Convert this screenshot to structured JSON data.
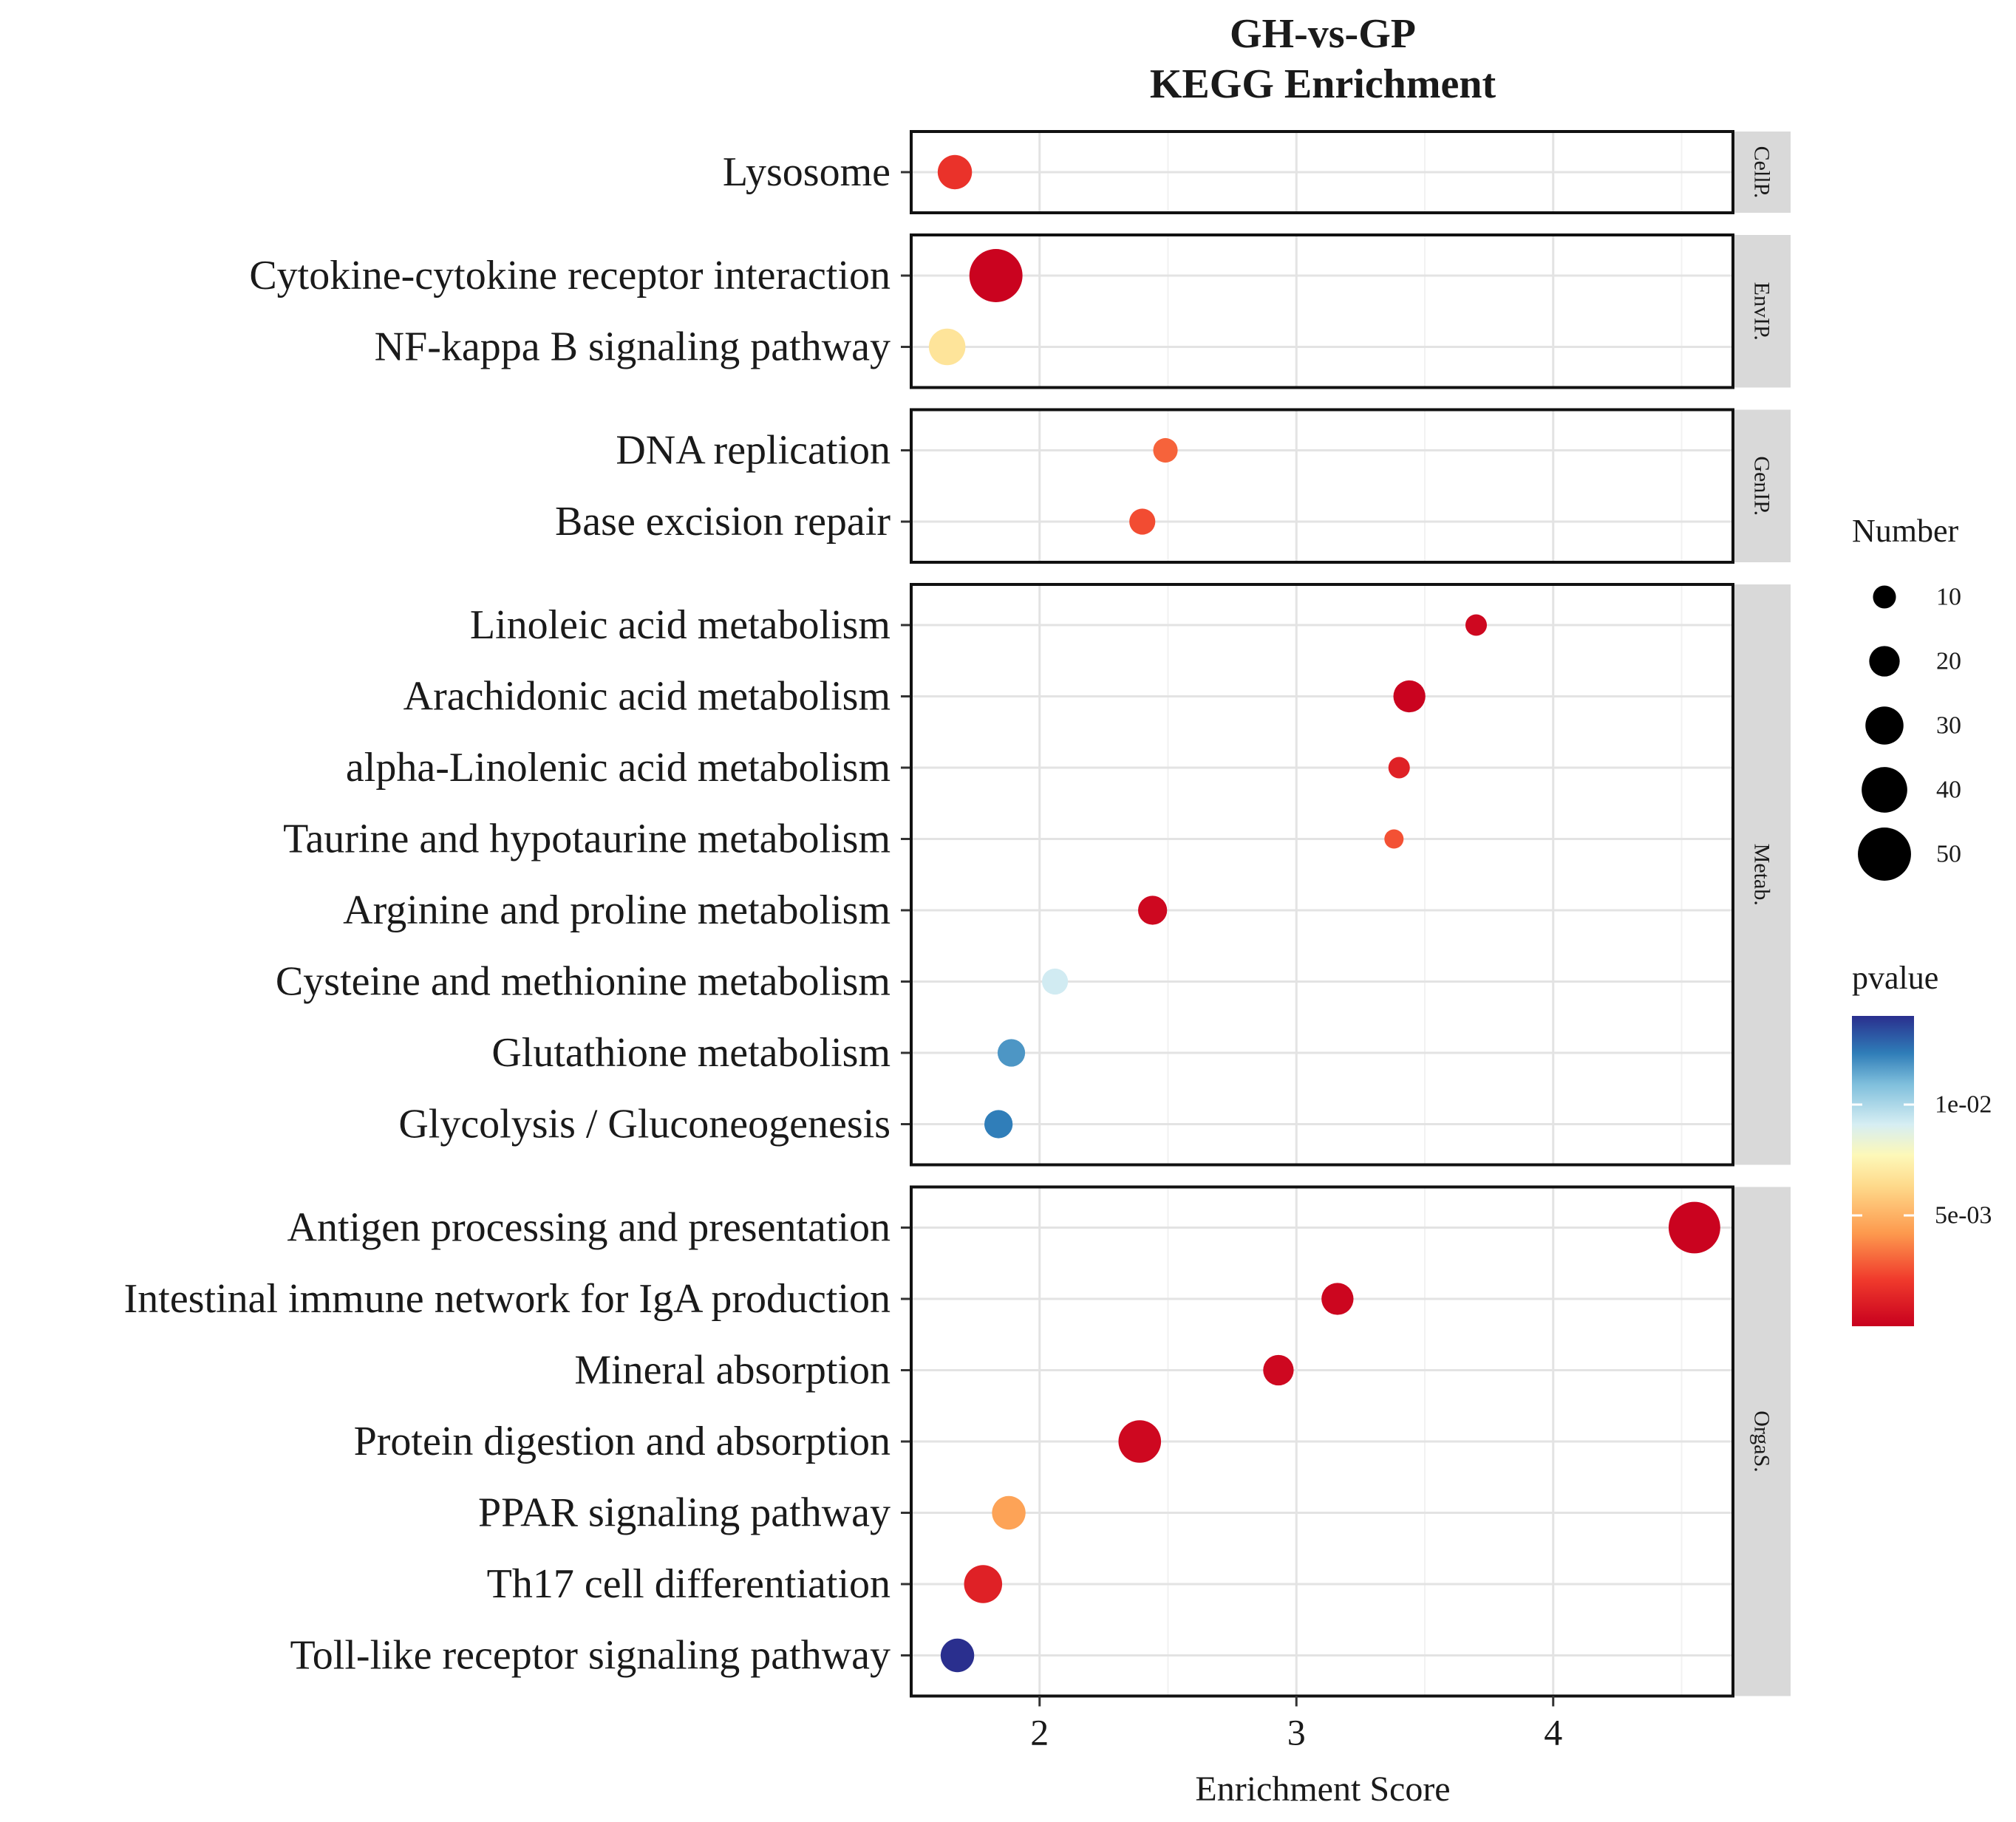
{
  "chart_data": {
    "type": "scatter",
    "title": [
      "GH-vs-GP",
      "KEGG Enrichment"
    ],
    "xlabel": "Enrichment Score",
    "xlim": [
      1.5,
      4.7
    ],
    "xticks": [
      2,
      3,
      4
    ],
    "xtick_labels": [
      "2",
      "3",
      "4"
    ],
    "grid": true,
    "colors": {
      "low_pvalue": "#c8001e",
      "mid": "#fdf8b8",
      "high_pvalue": "#2a2f8e"
    },
    "facets": [
      {
        "name": "CellP.",
        "terms": [
          {
            "term": "Lysosome",
            "score": 1.67,
            "number": 25,
            "pvalue": 0.0018
          }
        ]
      },
      {
        "name": "EnvIP.",
        "terms": [
          {
            "term": "Cytokine-cytokine receptor interaction",
            "score": 1.83,
            "number": 50,
            "pvalue": 0.0001
          },
          {
            "term": "NF-kappa B signaling pathway",
            "score": 1.64,
            "number": 28,
            "pvalue": 0.0068
          }
        ]
      },
      {
        "name": "GenIP.",
        "terms": [
          {
            "term": "DNA replication",
            "score": 2.49,
            "number": 12,
            "pvalue": 0.003
          },
          {
            "term": "Base excision repair",
            "score": 2.4,
            "number": 14,
            "pvalue": 0.0025
          }
        ]
      },
      {
        "name": "Metab.",
        "terms": [
          {
            "term": "Linoleic acid metabolism",
            "score": 3.7,
            "number": 8,
            "pvalue": 0.0003
          },
          {
            "term": "Arachidonic acid metabolism",
            "score": 3.44,
            "number": 22,
            "pvalue": 0.0001
          },
          {
            "term": "alpha-Linolenic acid metabolism",
            "score": 3.4,
            "number": 8,
            "pvalue": 0.0012
          },
          {
            "term": "Taurine and hypotaurine metabolism",
            "score": 3.38,
            "number": 5,
            "pvalue": 0.0026
          },
          {
            "term": "Arginine and proline metabolism",
            "score": 2.44,
            "number": 18,
            "pvalue": 0.0003
          },
          {
            "term": "Cysteine and methionine metabolism",
            "score": 2.06,
            "number": 14,
            "pvalue": 0.0092
          },
          {
            "term": "Glutathione metabolism",
            "score": 1.89,
            "number": 16,
            "pvalue": 0.0118
          },
          {
            "term": "Glycolysis / Gluconeogenesis",
            "score": 1.84,
            "number": 17,
            "pvalue": 0.0123
          }
        ]
      },
      {
        "name": "OrgaS.",
        "terms": [
          {
            "term": "Antigen processing and presentation",
            "score": 4.55,
            "number": 48,
            "pvalue": 0.0001
          },
          {
            "term": "Intestinal immune network for IgA production",
            "score": 3.16,
            "number": 22,
            "pvalue": 0.0002
          },
          {
            "term": "Mineral absorption",
            "score": 2.93,
            "number": 20,
            "pvalue": 0.0003
          },
          {
            "term": "Protein digestion and absorption",
            "score": 2.39,
            "number": 36,
            "pvalue": 0.0003
          },
          {
            "term": "PPAR signaling pathway",
            "score": 1.88,
            "number": 24,
            "pvalue": 0.0045
          },
          {
            "term": "Th17 cell differentiation",
            "score": 1.78,
            "number": 30,
            "pvalue": 0.0012
          },
          {
            "term": "Toll-like receptor signaling pathway",
            "score": 1.68,
            "number": 24,
            "pvalue": 0.014
          }
        ]
      }
    ],
    "legend": {
      "size_title": "Number",
      "size_breaks": [
        10,
        20,
        30,
        40,
        50
      ],
      "size_labels": [
        "10",
        "20",
        "30",
        "40",
        "50"
      ],
      "color_title": "pvalue",
      "color_range": [
        0,
        0.014
      ],
      "color_breaks": [
        0.01,
        0.005
      ],
      "color_labels": [
        "1e-02",
        "5e-03"
      ],
      "placement": "right"
    }
  }
}
